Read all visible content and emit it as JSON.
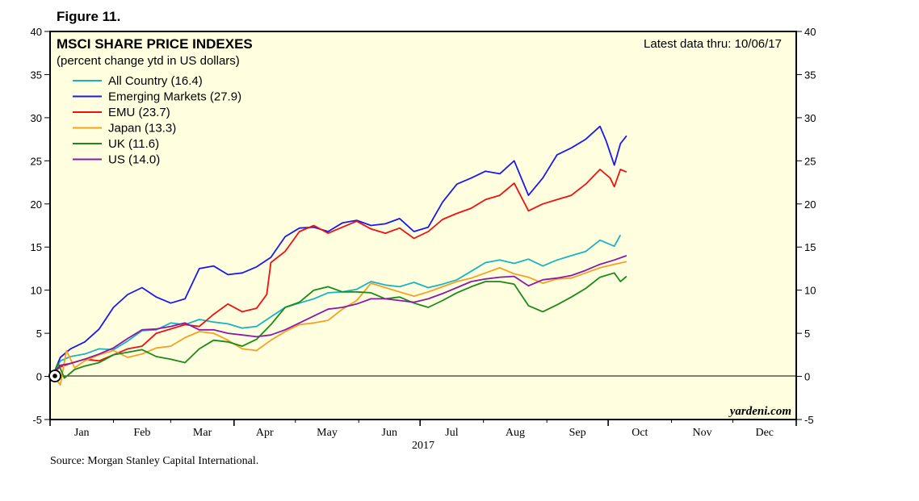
{
  "figure_label": "Figure 11.",
  "source_note": "Source: Morgan Stanley Capital International.",
  "watermark": "yardeni.com",
  "colors": {
    "plot_background": "#ffffe0",
    "frame": "#000000"
  },
  "chart_data": {
    "type": "line",
    "title": "MSCI SHARE PRICE INDEXES",
    "subtitle": "(percent change ytd in US dollars)",
    "annotation": "Latest data thru: 10/06/17",
    "x_year_label": "2017",
    "x_tick_labels": [
      "Jan",
      "Feb",
      "Mar",
      "Apr",
      "May",
      "Jun",
      "Jul",
      "Aug",
      "Sep",
      "Oct",
      "Nov",
      "Dec"
    ],
    "x_range_days": [
      0,
      365
    ],
    "ylim": [
      -5,
      40
    ],
    "y_ticks": [
      -5,
      0,
      5,
      10,
      15,
      20,
      25,
      30,
      35,
      40
    ],
    "legend_position": "top-left",
    "grid": false,
    "x_unit": "day of year 2017",
    "series": [
      {
        "name": "All Country (16.4)",
        "color": "#19b3c3",
        "points": [
          [
            2,
            0.5
          ],
          [
            5,
            1.8
          ],
          [
            10,
            2.3
          ],
          [
            17,
            2.6
          ],
          [
            24,
            3.2
          ],
          [
            31,
            3.1
          ],
          [
            38,
            4.1
          ],
          [
            45,
            5.3
          ],
          [
            52,
            5.4
          ],
          [
            59,
            6.2
          ],
          [
            66,
            6.0
          ],
          [
            73,
            6.6
          ],
          [
            80,
            6.3
          ],
          [
            87,
            6.1
          ],
          [
            94,
            5.6
          ],
          [
            101,
            5.8
          ],
          [
            108,
            6.9
          ],
          [
            115,
            8.0
          ],
          [
            122,
            8.5
          ],
          [
            129,
            9.0
          ],
          [
            136,
            9.7
          ],
          [
            143,
            9.8
          ],
          [
            150,
            10.1
          ],
          [
            157,
            11.0
          ],
          [
            164,
            10.6
          ],
          [
            171,
            10.4
          ],
          [
            178,
            10.9
          ],
          [
            185,
            10.3
          ],
          [
            192,
            10.7
          ],
          [
            199,
            11.2
          ],
          [
            206,
            12.2
          ],
          [
            213,
            13.2
          ],
          [
            220,
            13.5
          ],
          [
            227,
            13.1
          ],
          [
            234,
            13.6
          ],
          [
            241,
            12.8
          ],
          [
            248,
            13.5
          ],
          [
            255,
            14.0
          ],
          [
            262,
            14.5
          ],
          [
            269,
            15.8
          ],
          [
            276,
            15.1
          ],
          [
            279,
            16.4
          ]
        ]
      },
      {
        "name": "Emerging Markets (27.9)",
        "color": "#1a1aee",
        "points": [
          [
            2,
            0.5
          ],
          [
            5,
            2.2
          ],
          [
            10,
            3.2
          ],
          [
            17,
            4.0
          ],
          [
            24,
            5.5
          ],
          [
            31,
            8.0
          ],
          [
            38,
            9.5
          ],
          [
            45,
            10.3
          ],
          [
            52,
            9.2
          ],
          [
            59,
            8.5
          ],
          [
            66,
            9.0
          ],
          [
            73,
            12.5
          ],
          [
            80,
            12.8
          ],
          [
            87,
            11.8
          ],
          [
            94,
            12.0
          ],
          [
            101,
            12.7
          ],
          [
            108,
            13.8
          ],
          [
            115,
            16.2
          ],
          [
            122,
            17.2
          ],
          [
            129,
            17.3
          ],
          [
            136,
            16.8
          ],
          [
            143,
            17.8
          ],
          [
            150,
            18.1
          ],
          [
            157,
            17.5
          ],
          [
            164,
            17.7
          ],
          [
            171,
            18.3
          ],
          [
            178,
            16.8
          ],
          [
            185,
            17.3
          ],
          [
            192,
            20.2
          ],
          [
            199,
            22.3
          ],
          [
            206,
            23.0
          ],
          [
            213,
            23.8
          ],
          [
            220,
            23.5
          ],
          [
            227,
            25.0
          ],
          [
            234,
            21.0
          ],
          [
            241,
            23.0
          ],
          [
            248,
            25.7
          ],
          [
            255,
            26.5
          ],
          [
            262,
            27.5
          ],
          [
            269,
            29.0
          ],
          [
            272,
            27.3
          ],
          [
            276,
            24.5
          ],
          [
            279,
            27.0
          ],
          [
            282,
            27.9
          ]
        ]
      },
      {
        "name": "EMU (23.7)",
        "color": "#ee1111",
        "points": [
          [
            2,
            0.5
          ],
          [
            5,
            1.1
          ],
          [
            10,
            1.5
          ],
          [
            17,
            2.0
          ],
          [
            24,
            1.8
          ],
          [
            31,
            2.5
          ],
          [
            38,
            3.2
          ],
          [
            45,
            3.5
          ],
          [
            52,
            5.0
          ],
          [
            59,
            5.5
          ],
          [
            66,
            6.0
          ],
          [
            73,
            5.8
          ],
          [
            80,
            7.2
          ],
          [
            87,
            8.4
          ],
          [
            94,
            7.5
          ],
          [
            101,
            7.9
          ],
          [
            106,
            9.5
          ],
          [
            108,
            13.2
          ],
          [
            115,
            14.5
          ],
          [
            122,
            16.8
          ],
          [
            129,
            17.5
          ],
          [
            136,
            16.6
          ],
          [
            143,
            17.3
          ],
          [
            150,
            18.0
          ],
          [
            157,
            17.1
          ],
          [
            164,
            16.6
          ],
          [
            171,
            17.2
          ],
          [
            178,
            16.0
          ],
          [
            185,
            16.8
          ],
          [
            192,
            18.2
          ],
          [
            199,
            18.9
          ],
          [
            206,
            19.5
          ],
          [
            213,
            20.5
          ],
          [
            220,
            21.0
          ],
          [
            227,
            22.4
          ],
          [
            234,
            19.2
          ],
          [
            241,
            20.0
          ],
          [
            248,
            20.5
          ],
          [
            255,
            21.0
          ],
          [
            262,
            22.3
          ],
          [
            269,
            24.0
          ],
          [
            274,
            23.0
          ],
          [
            276,
            22.0
          ],
          [
            279,
            24.0
          ],
          [
            282,
            23.7
          ]
        ]
      },
      {
        "name": "Japan (13.3)",
        "color": "#f5a022",
        "points": [
          [
            2,
            0.0
          ],
          [
            5,
            -1.0
          ],
          [
            8,
            3.0
          ],
          [
            12,
            1.0
          ],
          [
            17,
            1.8
          ],
          [
            24,
            2.5
          ],
          [
            31,
            3.0
          ],
          [
            38,
            2.2
          ],
          [
            45,
            2.6
          ],
          [
            52,
            3.3
          ],
          [
            59,
            3.5
          ],
          [
            66,
            4.5
          ],
          [
            73,
            5.2
          ],
          [
            80,
            5.0
          ],
          [
            87,
            4.2
          ],
          [
            94,
            3.2
          ],
          [
            101,
            3.0
          ],
          [
            108,
            4.2
          ],
          [
            115,
            5.2
          ],
          [
            122,
            6.0
          ],
          [
            129,
            6.2
          ],
          [
            136,
            6.5
          ],
          [
            143,
            7.8
          ],
          [
            150,
            8.8
          ],
          [
            157,
            10.8
          ],
          [
            164,
            10.3
          ],
          [
            171,
            9.8
          ],
          [
            178,
            9.3
          ],
          [
            185,
            9.8
          ],
          [
            192,
            10.4
          ],
          [
            199,
            11.0
          ],
          [
            206,
            11.4
          ],
          [
            213,
            12.0
          ],
          [
            220,
            12.6
          ],
          [
            227,
            11.9
          ],
          [
            234,
            11.5
          ],
          [
            241,
            10.8
          ],
          [
            248,
            11.3
          ],
          [
            255,
            11.4
          ],
          [
            262,
            12.0
          ],
          [
            269,
            12.6
          ],
          [
            276,
            13.0
          ],
          [
            282,
            13.3
          ]
        ]
      },
      {
        "name": "UK (11.6)",
        "color": "#1a8a1a",
        "points": [
          [
            2,
            0.5
          ],
          [
            4,
            1.5
          ],
          [
            7,
            -0.2
          ],
          [
            12,
            0.8
          ],
          [
            17,
            1.2
          ],
          [
            24,
            1.6
          ],
          [
            31,
            2.5
          ],
          [
            38,
            2.8
          ],
          [
            45,
            3.1
          ],
          [
            52,
            2.3
          ],
          [
            59,
            2.0
          ],
          [
            66,
            1.6
          ],
          [
            73,
            3.2
          ],
          [
            80,
            4.2
          ],
          [
            87,
            4.0
          ],
          [
            94,
            3.5
          ],
          [
            101,
            4.3
          ],
          [
            108,
            6.0
          ],
          [
            115,
            8.0
          ],
          [
            122,
            8.6
          ],
          [
            129,
            10.0
          ],
          [
            136,
            10.4
          ],
          [
            143,
            9.8
          ],
          [
            150,
            9.8
          ],
          [
            157,
            9.7
          ],
          [
            164,
            9.0
          ],
          [
            171,
            9.2
          ],
          [
            178,
            8.5
          ],
          [
            185,
            8.0
          ],
          [
            192,
            8.8
          ],
          [
            199,
            9.7
          ],
          [
            206,
            10.4
          ],
          [
            213,
            11.0
          ],
          [
            220,
            11.0
          ],
          [
            227,
            10.7
          ],
          [
            234,
            8.2
          ],
          [
            241,
            7.5
          ],
          [
            248,
            8.3
          ],
          [
            255,
            9.2
          ],
          [
            262,
            10.2
          ],
          [
            269,
            11.5
          ],
          [
            276,
            12.0
          ],
          [
            279,
            11.0
          ],
          [
            282,
            11.6
          ]
        ]
      },
      {
        "name": "US (14.0)",
        "color": "#8a1aa8",
        "points": [
          [
            2,
            0.5
          ],
          [
            5,
            1.3
          ],
          [
            10,
            1.5
          ],
          [
            17,
            2.0
          ],
          [
            24,
            2.6
          ],
          [
            31,
            3.3
          ],
          [
            38,
            4.4
          ],
          [
            45,
            5.4
          ],
          [
            52,
            5.5
          ],
          [
            59,
            5.8
          ],
          [
            66,
            6.2
          ],
          [
            73,
            5.4
          ],
          [
            80,
            5.4
          ],
          [
            87,
            5.0
          ],
          [
            94,
            4.8
          ],
          [
            101,
            4.6
          ],
          [
            108,
            4.8
          ],
          [
            115,
            5.4
          ],
          [
            122,
            6.2
          ],
          [
            129,
            7.0
          ],
          [
            136,
            7.8
          ],
          [
            143,
            8.0
          ],
          [
            150,
            8.4
          ],
          [
            157,
            9.0
          ],
          [
            164,
            9.0
          ],
          [
            171,
            8.8
          ],
          [
            178,
            8.6
          ],
          [
            185,
            9.0
          ],
          [
            192,
            9.6
          ],
          [
            199,
            10.3
          ],
          [
            206,
            11.0
          ],
          [
            213,
            11.3
          ],
          [
            220,
            11.5
          ],
          [
            227,
            11.6
          ],
          [
            234,
            10.5
          ],
          [
            241,
            11.2
          ],
          [
            248,
            11.4
          ],
          [
            255,
            11.7
          ],
          [
            262,
            12.3
          ],
          [
            269,
            13.0
          ],
          [
            276,
            13.5
          ],
          [
            282,
            14.0
          ]
        ]
      }
    ]
  }
}
